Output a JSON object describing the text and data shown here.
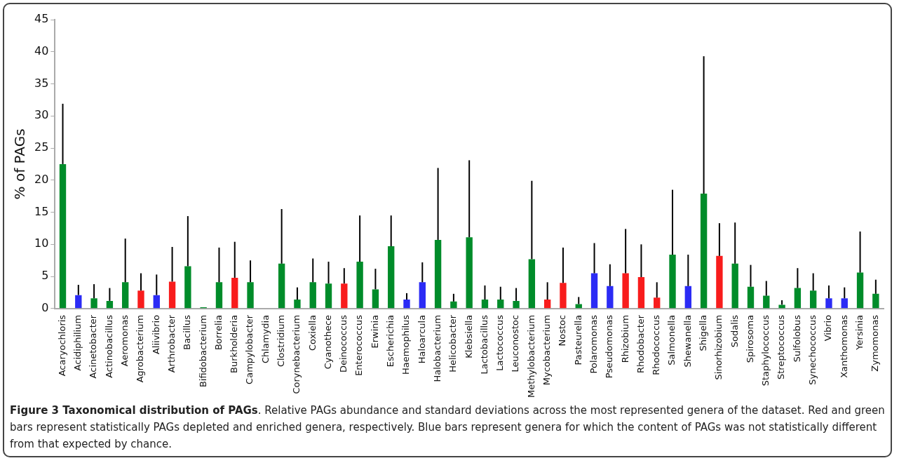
{
  "chart_data": {
    "type": "bar",
    "title": "Figure 3 Taxonomical distribution of PAGs",
    "ylabel": "% of PAGs",
    "annotations": [
      ". Relative PAGs abundance and standard deviations across the most represented genera of the dataset. Red and green bars represent statistically PAGs depleted and enriched genera, respectively. Blue bars represent genera for which the content of PAGs was not statistically different from that expected by chance."
    ],
    "categories": [
      "Acaryochloris",
      "Acidiphilium",
      "Acinetobacter",
      "Actinobacillus",
      "Aeromonas",
      "Agrobacterium",
      "Aliivibrio",
      "Arthrobacter",
      "Bacillus",
      "Bifidobacterium",
      "Borrelia",
      "Burkholderia",
      "Campylobacter",
      "Chlamydia",
      "Clostridium",
      "Corynebacterium",
      "Coxiella",
      "Cyanothece",
      "Deinococcus",
      "Enterococcus",
      "Erwinia",
      "Escherichia",
      "Haemophilus",
      "Haloarcula",
      "Halobacterium",
      "Helicobacter",
      "Klebsiella",
      "Lactobacillus",
      "Lactococcus",
      "Leuconostoc",
      "Methylobacterium",
      "Mycobacterium",
      "Nostoc",
      "Pasteurella",
      "Polaromonas",
      "Pseudomonas",
      "Rhizobium",
      "Rhodobacter",
      "Rhodococcus",
      "Salmonella",
      "Shewanella",
      "Shigella",
      "Sinorhizobium",
      "Sodalis",
      "Spirosoma",
      "Staphylococcus",
      "Streptococcus",
      "Sulfolobus",
      "Synechococcus",
      "Vibrio",
      "Xanthomonas",
      "Yersinia",
      "Zymomonas"
    ],
    "values": [
      22.5,
      2.1,
      1.6,
      1.2,
      4.1,
      2.8,
      2.1,
      4.2,
      6.6,
      0.2,
      4.1,
      4.8,
      4.1,
      0,
      7.0,
      1.4,
      4.1,
      3.9,
      3.9,
      7.3,
      3.0,
      9.7,
      1.4,
      4.1,
      10.7,
      1.1,
      11.1,
      1.4,
      1.4,
      1.2,
      7.7,
      1.4,
      4.0,
      0.7,
      5.5,
      3.5,
      5.5,
      4.9,
      1.7,
      8.4,
      3.5,
      17.9,
      8.2,
      7.0,
      3.4,
      2.0,
      0.6,
      3.2,
      2.8,
      1.6,
      1.6,
      5.6,
      2.3
    ],
    "errors": [
      [
        22.5,
        31.9
      ],
      [
        2.1,
        3.7
      ],
      [
        1.6,
        3.8
      ],
      [
        1.2,
        3.2
      ],
      [
        4.1,
        10.9
      ],
      [
        2.8,
        5.5
      ],
      [
        2.1,
        5.3
      ],
      [
        4.2,
        9.6
      ],
      [
        6.6,
        14.4
      ],
      null,
      [
        4.1,
        9.5
      ],
      [
        4.8,
        10.4
      ],
      [
        4.1,
        7.5
      ],
      null,
      [
        7.0,
        15.5
      ],
      [
        1.4,
        3.3
      ],
      [
        4.1,
        7.8
      ],
      [
        3.9,
        7.3
      ],
      [
        3.9,
        6.3
      ],
      [
        7.3,
        14.5
      ],
      [
        3.0,
        6.2
      ],
      [
        9.7,
        14.5
      ],
      [
        1.4,
        2.4
      ],
      [
        4.1,
        7.2
      ],
      [
        10.7,
        21.9
      ],
      [
        1.1,
        2.3
      ],
      [
        11.1,
        23.1
      ],
      [
        1.4,
        3.6
      ],
      [
        1.4,
        3.4
      ],
      [
        1.2,
        3.2
      ],
      [
        7.7,
        19.9
      ],
      [
        1.4,
        4.1
      ],
      [
        4.0,
        9.5
      ],
      [
        0.7,
        1.8
      ],
      [
        5.5,
        10.2
      ],
      [
        3.5,
        6.9
      ],
      [
        5.5,
        12.4
      ],
      [
        4.9,
        10.0
      ],
      [
        1.7,
        4.1
      ],
      [
        8.4,
        18.5
      ],
      [
        3.5,
        8.4
      ],
      [
        17.9,
        39.3
      ],
      [
        8.2,
        13.3
      ],
      [
        7.0,
        13.4
      ],
      [
        3.4,
        6.8
      ],
      [
        2.0,
        4.3
      ],
      [
        0.6,
        1.3
      ],
      [
        3.2,
        6.3
      ],
      [
        2.8,
        5.5
      ],
      [
        1.6,
        3.6
      ],
      [
        1.6,
        3.3
      ],
      [
        5.6,
        12.0
      ],
      [
        2.3,
        4.5
      ]
    ],
    "colors": [
      "#008c2a",
      "#2b2bf5",
      "#008c2a",
      "#008c2a",
      "#008c2a",
      "#f81c1c",
      "#2b2bf5",
      "#f81c1c",
      "#008c2a",
      "#008c2a",
      "#008c2a",
      "#f81c1c",
      "#008c2a",
      "#008c2a",
      "#008c2a",
      "#008c2a",
      "#008c2a",
      "#008c2a",
      "#f81c1c",
      "#008c2a",
      "#008c2a",
      "#008c2a",
      "#2b2bf5",
      "#2b2bf5",
      "#008c2a",
      "#008c2a",
      "#008c2a",
      "#008c2a",
      "#008c2a",
      "#008c2a",
      "#008c2a",
      "#f81c1c",
      "#f81c1c",
      "#008c2a",
      "#2b2bf5",
      "#2b2bf5",
      "#f81c1c",
      "#f81c1c",
      "#f81c1c",
      "#008c2a",
      "#2b2bf5",
      "#008c2a",
      "#f81c1c",
      "#008c2a",
      "#008c2a",
      "#008c2a",
      "#008c2a",
      "#008c2a",
      "#008c2a",
      "#2b2bf5",
      "#2b2bf5",
      "#008c2a",
      "#008c2a"
    ],
    "ylim": [
      0,
      45
    ],
    "yticks": [
      0,
      5,
      10,
      15,
      20,
      25,
      30,
      35,
      40,
      45
    ],
    "grid": false,
    "legend": false
  }
}
